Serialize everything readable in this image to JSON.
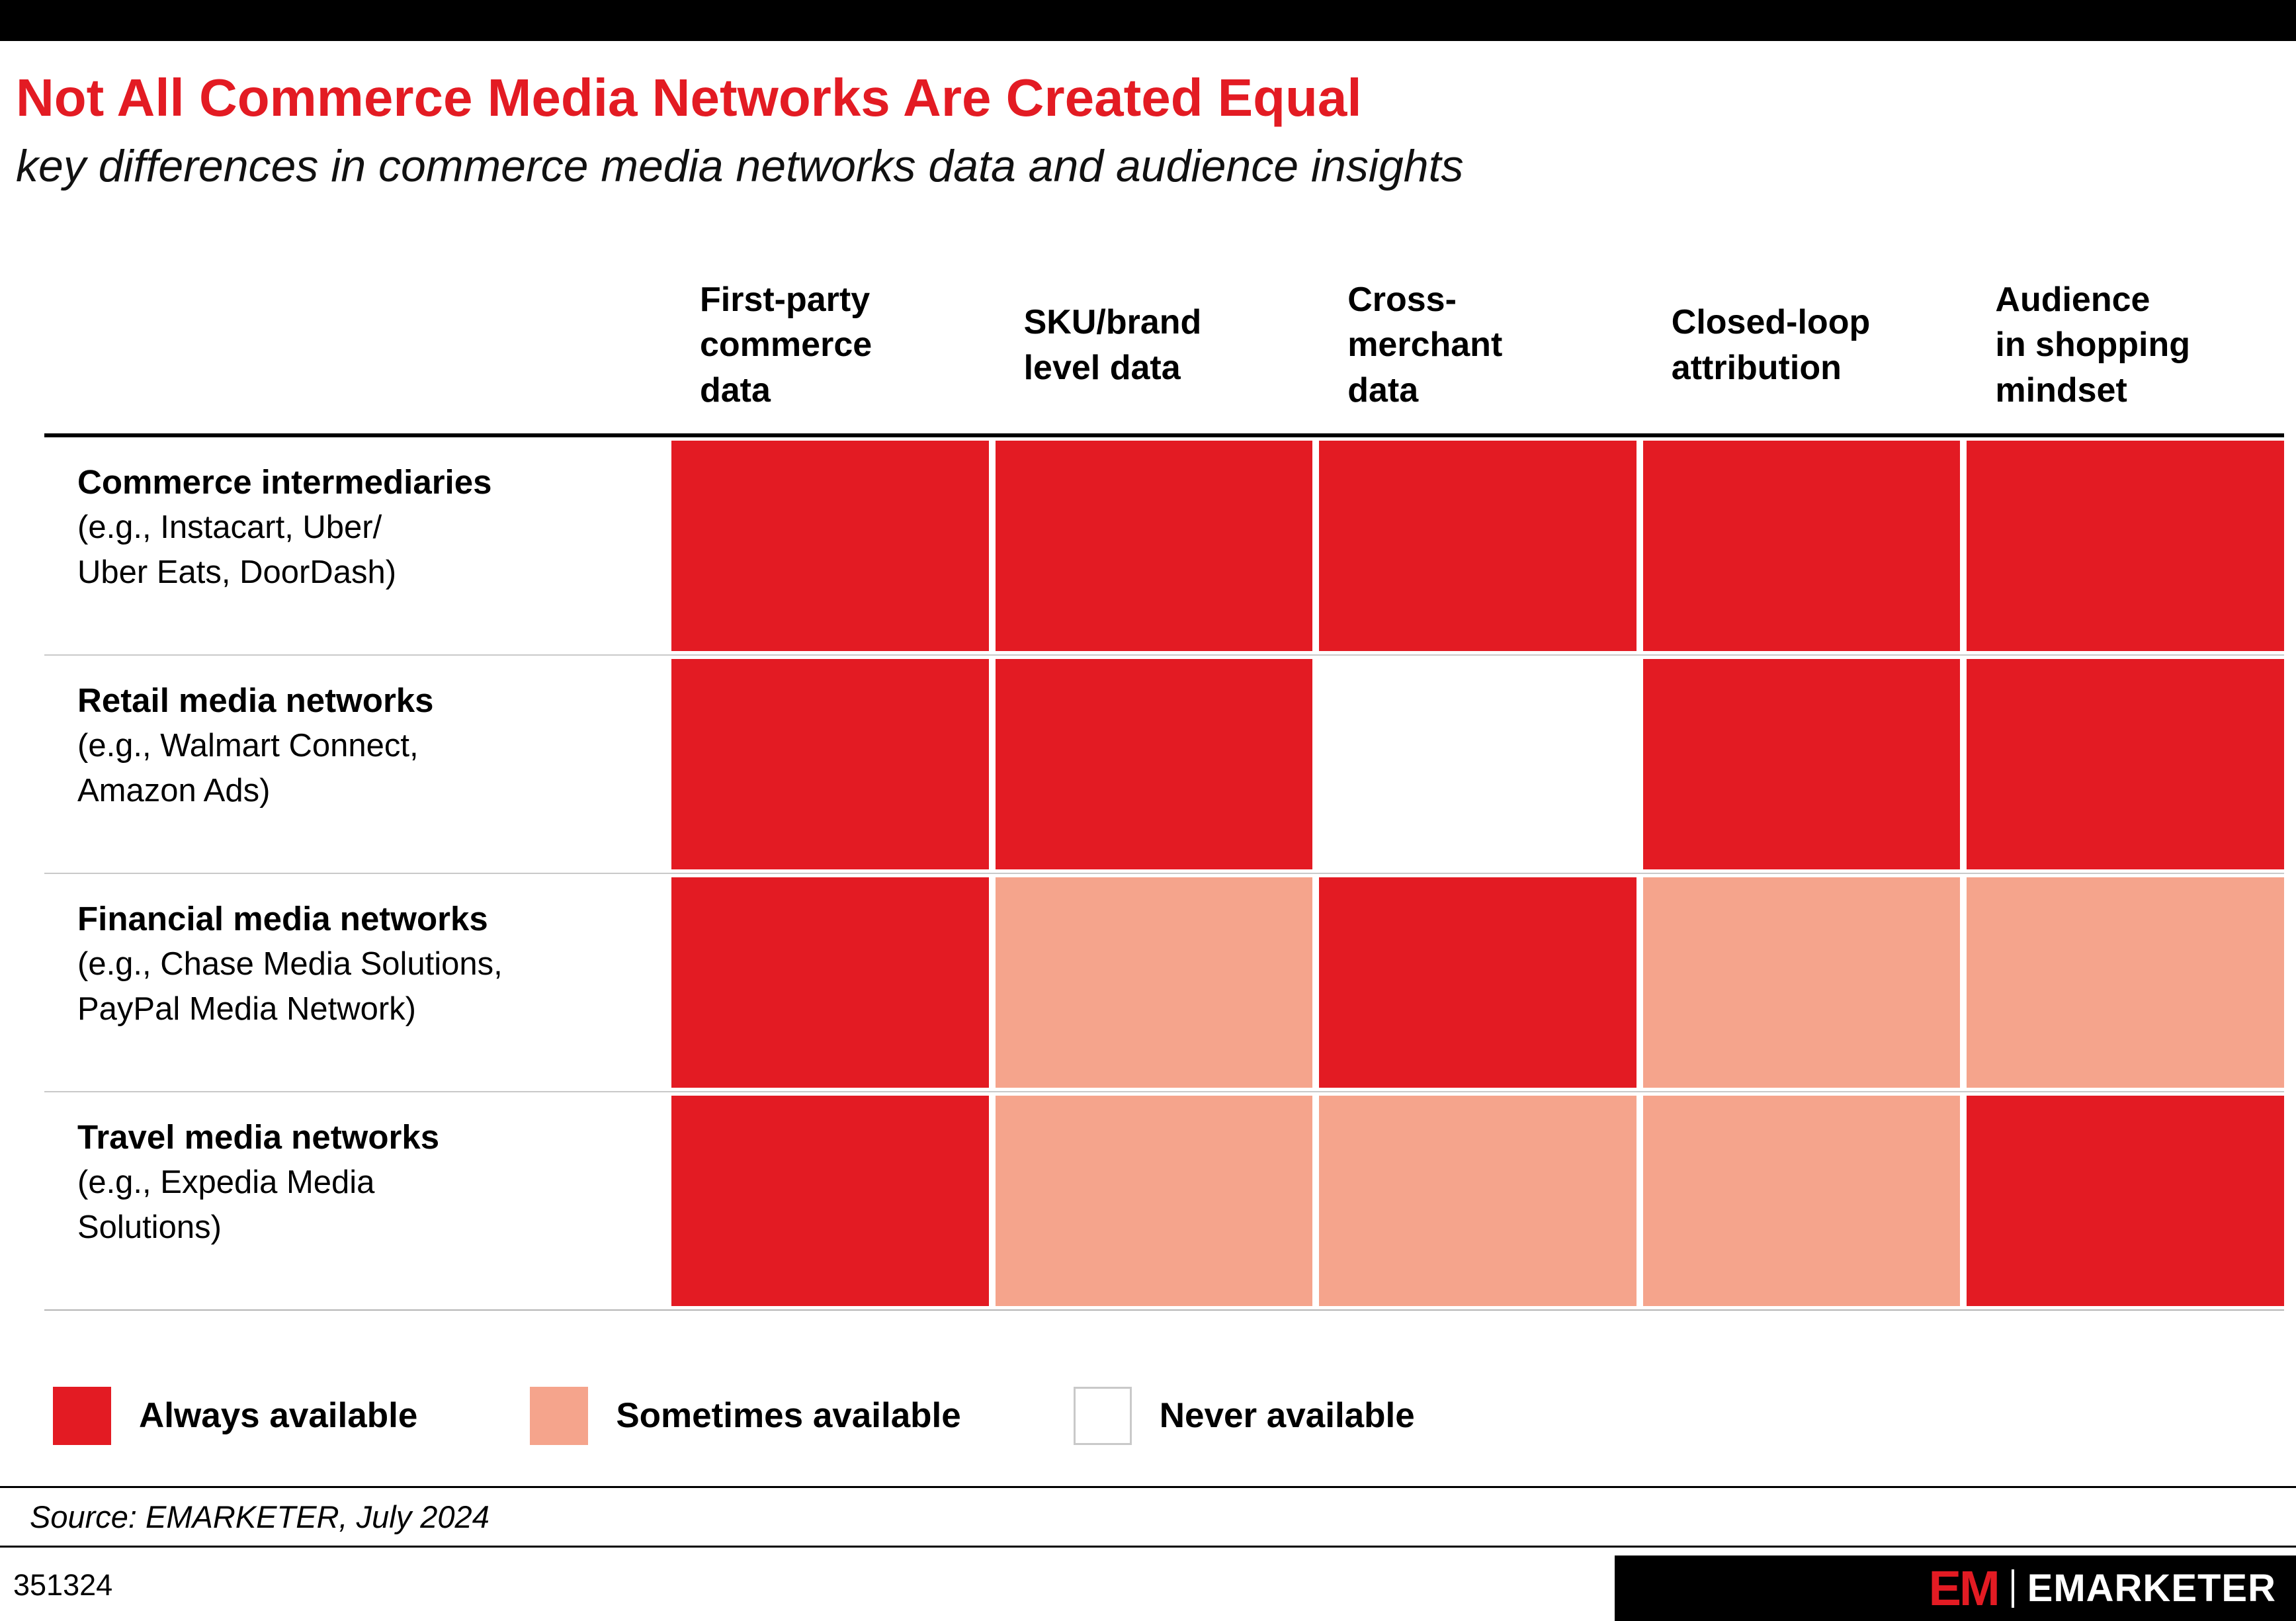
{
  "header": {
    "title": "Not All Commerce Media Networks Are Created Equal",
    "subtitle": "key differences in commerce media networks data and audience insights"
  },
  "colors": {
    "accent": "#E31B23",
    "always": "#E31B23",
    "sometimes": "#F5A48C",
    "never": "#FFFFFF"
  },
  "chart_data": {
    "type": "heatmap",
    "columns": [
      "First-party\ncommerce\ndata",
      "SKU/brand\nlevel data",
      "Cross-\nmerchant\ndata",
      "Closed-loop\nattribution",
      "Audience\nin shopping\nmindset"
    ],
    "rows": [
      {
        "label": "Commerce intermediaries",
        "examples": "(e.g., Instacart, Uber/\nUber Eats, DoorDash)"
      },
      {
        "label": "Retail media networks",
        "examples": "(e.g., Walmart Connect,\nAmazon Ads)"
      },
      {
        "label": "Financial media networks",
        "examples": "(e.g., Chase Media Solutions,\nPayPal Media Network)"
      },
      {
        "label": "Travel media networks",
        "examples": "(e.g., Expedia Media\nSolutions)"
      }
    ],
    "matrix": [
      [
        "always",
        "always",
        "always",
        "always",
        "always"
      ],
      [
        "always",
        "always",
        "never",
        "always",
        "always"
      ],
      [
        "always",
        "sometimes",
        "always",
        "sometimes",
        "sometimes"
      ],
      [
        "always",
        "sometimes",
        "sometimes",
        "sometimes",
        "always"
      ]
    ],
    "value_labels": {
      "always": "Always available",
      "sometimes": "Sometimes available",
      "never": "Never available"
    }
  },
  "legend": {
    "items": [
      {
        "key": "always",
        "label": "Always available"
      },
      {
        "key": "sometimes",
        "label": "Sometimes available"
      },
      {
        "key": "never",
        "label": "Never available"
      }
    ]
  },
  "source": "Source: EMARKETER, July 2024",
  "footer": {
    "chart_id": "351324",
    "logo_em": "EM",
    "logo_text": "EMARKETER"
  }
}
